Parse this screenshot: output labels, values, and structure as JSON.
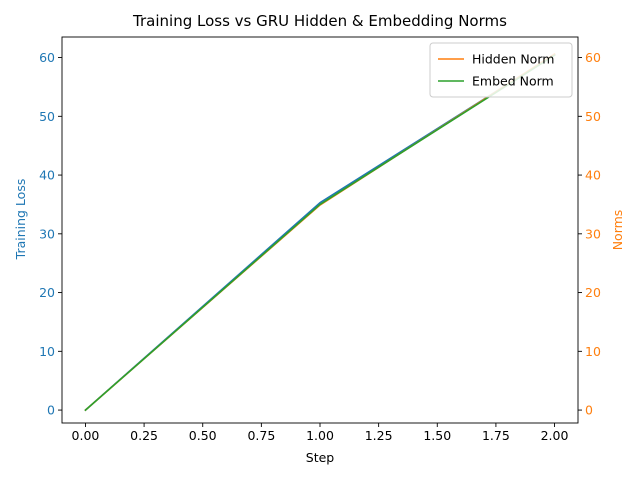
{
  "chart_data": {
    "type": "line",
    "title": "Training Loss vs GRU Hidden & Embedding Norms",
    "xlabel": "Step",
    "ylabel_left": "Training Loss",
    "ylabel_right": "Norms",
    "xlim": [
      -0.1,
      2.1
    ],
    "ylim_left": [
      -2.2,
      63.5
    ],
    "ylim_right": [
      -2.2,
      63.5
    ],
    "x_ticks": [
      0.0,
      0.25,
      0.5,
      0.75,
      1.0,
      1.25,
      1.5,
      1.75,
      2.0
    ],
    "x_tick_labels": [
      "0.00",
      "0.25",
      "0.50",
      "0.75",
      "1.00",
      "1.25",
      "1.50",
      "1.75",
      "2.00"
    ],
    "y_ticks_left": [
      0,
      10,
      20,
      30,
      40,
      50,
      60
    ],
    "y_tick_labels_left": [
      "0",
      "10",
      "20",
      "30",
      "40",
      "50",
      "60"
    ],
    "y_ticks_right": [
      0,
      10,
      20,
      30,
      40,
      50,
      60
    ],
    "y_tick_labels_right": [
      "0",
      "10",
      "20",
      "30",
      "40",
      "50",
      "60"
    ],
    "grid": false,
    "legend_position": "top-right",
    "colors": {
      "left_axis": "#1f77b4",
      "right_axis": "#ff7f0e"
    },
    "series": [
      {
        "key": "loss",
        "axis": "left",
        "color": "#1f77b4",
        "x": [
          0,
          1,
          2
        ],
        "values": [
          0,
          35.3,
          60.5
        ]
      },
      {
        "key": "hidden",
        "name": "Hidden Norm",
        "axis": "right",
        "color": "#ff7f0e",
        "x": [
          0,
          1,
          2
        ],
        "values": [
          0,
          34.9,
          60.6
        ]
      },
      {
        "key": "embed",
        "name": "Embed Norm",
        "axis": "right",
        "color": "#2ca02c",
        "x": [
          0,
          1,
          2
        ],
        "values": [
          0,
          35.0,
          60.4
        ]
      }
    ],
    "legend": [
      "Hidden Norm",
      "Embed Norm"
    ]
  }
}
